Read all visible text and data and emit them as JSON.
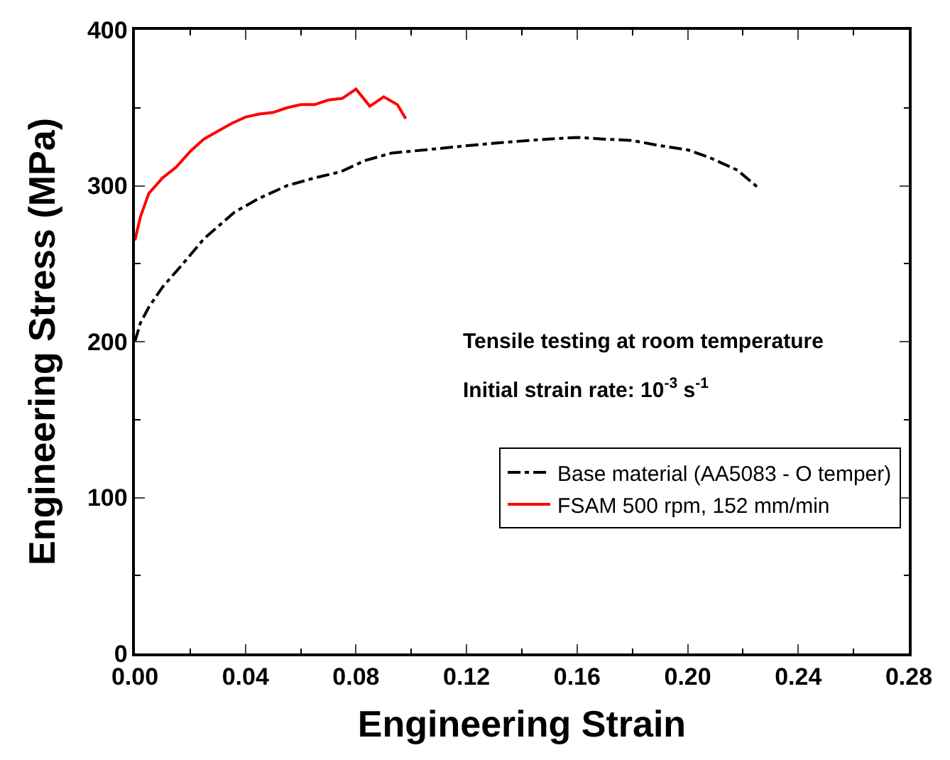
{
  "chart_data": {
    "type": "line",
    "xlabel": "Engineering Strain",
    "ylabel": "Engineering Stress (MPa)",
    "xlim": [
      0,
      0.28
    ],
    "xticks": [
      {
        "value": 0,
        "label": "0.00"
      },
      {
        "value": 0.04,
        "label": "0.04"
      },
      {
        "value": 0.08,
        "label": "0.08"
      },
      {
        "value": 0.12,
        "label": "0.12"
      },
      {
        "value": 0.16,
        "label": "0.16"
      },
      {
        "value": 0.2,
        "label": "0.20"
      },
      {
        "value": 0.24,
        "label": "0.24"
      },
      {
        "value": 0.28,
        "label": "0.28"
      }
    ],
    "ylim": [
      0,
      400
    ],
    "yticks": [
      0,
      100,
      200,
      300,
      400
    ],
    "legend": "bottom right",
    "marker": "none",
    "annotations": [
      "Tensile testing at room temperature",
      "Initial strain rate: 10$^{-3}$ s$^{-1}$"
    ],
    "series": [
      {
        "name": "Base material (AA5083 - O temper)",
        "color": "#000000",
        "line_style": "dashdot",
        "x": [
          0,
          0.002,
          0.005,
          0.01,
          0.0174,
          0.025,
          0.036,
          0.045,
          0.055,
          0.065,
          0.0745,
          0.083,
          0.093,
          0.105,
          0.122,
          0.135,
          0.15,
          0.16,
          0.169,
          0.18,
          0.189,
          0.2,
          0.208,
          0.218,
          0.226
        ],
        "values": [
          200,
          212,
          222,
          235,
          250,
          266,
          283,
          292,
          300,
          305,
          309,
          316,
          321,
          323,
          326,
          328,
          330,
          331,
          330,
          329,
          326,
          323,
          318,
          310,
          298
        ]
      },
      {
        "name": "FSAM 500 rpm, 152 mm/min",
        "color": "#ff0000",
        "line_style": "solid",
        "x": [
          0,
          0.002,
          0.005,
          0.01,
          0.015,
          0.02,
          0.025,
          0.03,
          0.035,
          0.04,
          0.045,
          0.05,
          0.055,
          0.06,
          0.065,
          0.07,
          0.075,
          0.08,
          0.085,
          0.09,
          0.095,
          0.098
        ],
        "values": [
          265,
          280,
          295,
          305,
          312,
          322,
          330,
          335,
          340,
          344,
          346,
          347,
          350,
          352,
          352,
          355,
          356,
          362,
          351,
          357,
          352,
          343
        ]
      }
    ]
  }
}
